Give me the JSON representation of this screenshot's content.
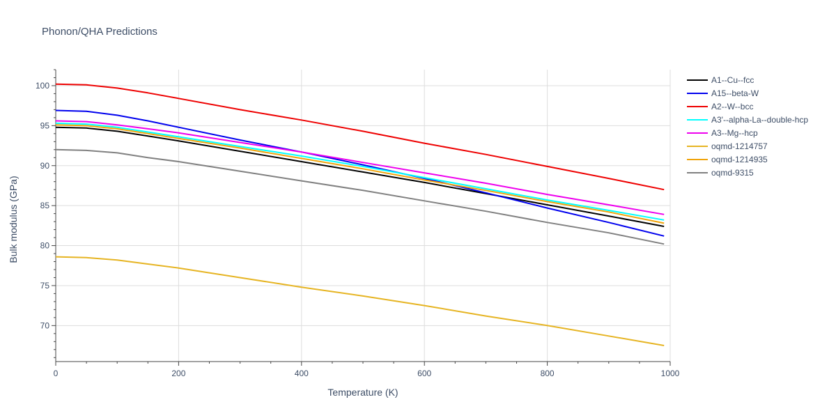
{
  "chart_data": {
    "type": "line",
    "title": "Phonon/QHA Predictions",
    "xlabel": "Temperature (K)",
    "ylabel": "Bulk modulus (GPa)",
    "xlim": [
      0,
      1000
    ],
    "ylim": [
      65.5,
      102
    ],
    "xticks": [
      0,
      200,
      400,
      600,
      800,
      1000
    ],
    "yticks": [
      70,
      75,
      80,
      85,
      90,
      95,
      100
    ],
    "xtick_labels": [
      "0",
      "200",
      "400",
      "600",
      "800",
      "1000"
    ],
    "ytick_labels": [
      "70",
      "75",
      "80",
      "85",
      "90",
      "95",
      "100"
    ],
    "grid": true,
    "legend_position": "right",
    "x": [
      0,
      50,
      100,
      150,
      200,
      300,
      400,
      500,
      600,
      700,
      800,
      900,
      990
    ],
    "series": [
      {
        "name": "A1--Cu--fcc",
        "color": "#000000",
        "values": [
          94.8,
          94.7,
          94.3,
          93.7,
          93.1,
          91.8,
          90.5,
          89.2,
          87.9,
          86.5,
          85.1,
          83.7,
          82.4
        ]
      },
      {
        "name": "A15--beta-W",
        "color": "#0000ee",
        "values": [
          96.9,
          96.8,
          96.3,
          95.6,
          94.8,
          93.2,
          91.7,
          90.1,
          88.4,
          86.6,
          84.7,
          82.9,
          81.2
        ]
      },
      {
        "name": "A2--W--bcc",
        "color": "#ee0000",
        "values": [
          100.2,
          100.1,
          99.7,
          99.1,
          98.4,
          97.0,
          95.7,
          94.3,
          92.8,
          91.4,
          89.9,
          88.4,
          87.0
        ]
      },
      {
        "name": "A3'--alpha-La--double-hcp",
        "color": "#00ffff",
        "values": [
          95.3,
          95.2,
          94.8,
          94.2,
          93.6,
          92.4,
          91.2,
          89.9,
          88.5,
          87.1,
          85.7,
          84.4,
          83.2
        ]
      },
      {
        "name": "A3--Mg--hcp",
        "color": "#ee00ee",
        "values": [
          95.6,
          95.5,
          95.1,
          94.6,
          94.1,
          92.9,
          91.7,
          90.4,
          89.1,
          87.8,
          86.4,
          85.1,
          83.9
        ]
      },
      {
        "name": "oqmd-1214757",
        "color": "#e6b422",
        "values": [
          78.6,
          78.5,
          78.2,
          77.7,
          77.2,
          76.0,
          74.8,
          73.7,
          72.5,
          71.2,
          70.0,
          68.7,
          67.5
        ]
      },
      {
        "name": "oqmd-1214935",
        "color": "#f0a30a",
        "values": [
          95.1,
          95.0,
          94.6,
          94.0,
          93.4,
          92.2,
          90.9,
          89.6,
          88.2,
          86.9,
          85.5,
          84.2,
          82.8
        ]
      },
      {
        "name": "oqmd-9315",
        "color": "#808080",
        "values": [
          92.0,
          91.9,
          91.6,
          91.0,
          90.5,
          89.3,
          88.1,
          86.9,
          85.6,
          84.3,
          82.9,
          81.6,
          80.2
        ]
      }
    ]
  }
}
